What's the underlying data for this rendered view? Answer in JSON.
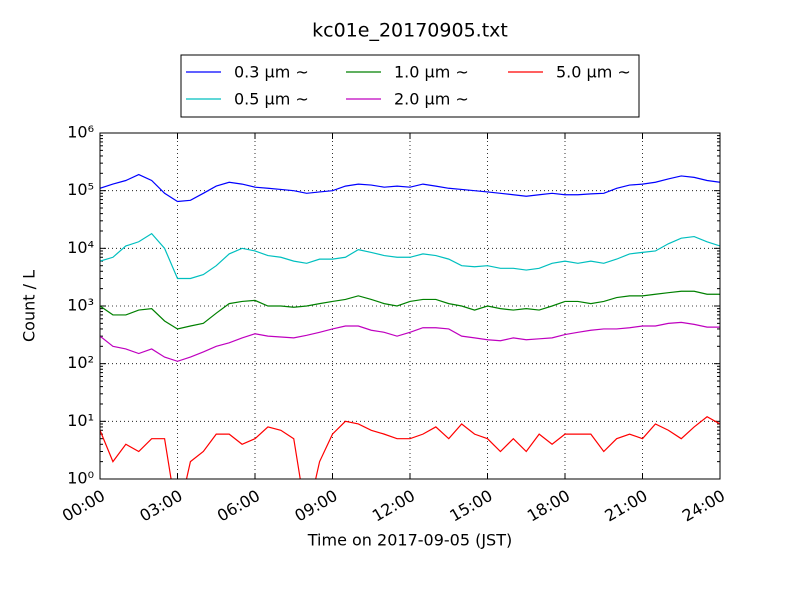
{
  "chart_data": {
    "type": "line",
    "title": "kc01e_20170905.txt",
    "x_label": "Time on 2017-09-05 (JST)",
    "y_label": "Count / L",
    "log_y": true,
    "grid": true,
    "legend": "top-outside",
    "xlim": [
      0,
      24
    ],
    "xticks": [
      {
        "value": 0,
        "label": "00:00"
      },
      {
        "value": 3,
        "label": "03:00"
      },
      {
        "value": 6,
        "label": "06:00"
      },
      {
        "value": 9,
        "label": "09:00"
      },
      {
        "value": 12,
        "label": "12:00"
      },
      {
        "value": 15,
        "label": "15:00"
      },
      {
        "value": 18,
        "label": "18:00"
      },
      {
        "value": 21,
        "label": "21:00"
      },
      {
        "value": 24,
        "label": "24:00"
      }
    ],
    "ylim": [
      1,
      1000000
    ],
    "yticks": [
      {
        "value": 1,
        "label": "10⁰"
      },
      {
        "value": 10,
        "label": "10¹"
      },
      {
        "value": 100,
        "label": "10²"
      },
      {
        "value": 1000,
        "label": "10³"
      },
      {
        "value": 10000,
        "label": "10⁴"
      },
      {
        "value": 100000,
        "label": "10⁵"
      },
      {
        "value": 1000000,
        "label": "10⁶"
      }
    ],
    "x": [
      0,
      0.5,
      1,
      1.5,
      2,
      2.5,
      3,
      3.5,
      4,
      4.5,
      5,
      5.5,
      6,
      6.5,
      7,
      7.5,
      8,
      8.5,
      9,
      9.5,
      10,
      10.5,
      11,
      11.5,
      12,
      12.5,
      13,
      13.5,
      14,
      14.5,
      15,
      15.5,
      16,
      16.5,
      17,
      17.5,
      18,
      18.5,
      19,
      19.5,
      20,
      20.5,
      21,
      21.5,
      22,
      22.5,
      23,
      23.5,
      24
    ],
    "series": [
      {
        "name": "0.3 μm ~",
        "color": "#0000ff",
        "values": [
          110000,
          130000,
          150000,
          190000,
          150000,
          90000,
          65000,
          68000,
          90000,
          120000,
          140000,
          130000,
          115000,
          110000,
          105000,
          100000,
          90000,
          95000,
          100000,
          120000,
          130000,
          125000,
          115000,
          120000,
          115000,
          130000,
          120000,
          110000,
          105000,
          100000,
          95000,
          90000,
          85000,
          80000,
          85000,
          90000,
          85000,
          85000,
          88000,
          90000,
          110000,
          125000,
          130000,
          140000,
          160000,
          180000,
          170000,
          150000,
          140000
        ]
      },
      {
        "name": "0.5 μm ~",
        "color": "#00bfbf",
        "values": [
          6000,
          7000,
          11000,
          13000,
          18000,
          10000,
          3000,
          3000,
          3500,
          5000,
          8000,
          10000,
          9000,
          7500,
          7000,
          6000,
          5500,
          6500,
          6500,
          7000,
          9500,
          8500,
          7500,
          7000,
          7000,
          8000,
          7500,
          6500,
          5000,
          4800,
          5000,
          4500,
          4500,
          4200,
          4500,
          5500,
          6000,
          5500,
          6000,
          5500,
          6500,
          8000,
          8500,
          9000,
          12000,
          15000,
          16000,
          13000,
          11000
        ]
      },
      {
        "name": "1.0 μm ~",
        "color": "#008000",
        "values": [
          1000,
          700,
          700,
          850,
          900,
          550,
          400,
          450,
          500,
          750,
          1100,
          1200,
          1250,
          1000,
          1000,
          950,
          1000,
          1100,
          1200,
          1300,
          1500,
          1300,
          1100,
          1000,
          1200,
          1300,
          1300,
          1100,
          1000,
          850,
          1000,
          900,
          850,
          900,
          850,
          1000,
          1200,
          1200,
          1100,
          1200,
          1400,
          1500,
          1500,
          1600,
          1700,
          1800,
          1800,
          1600,
          1600
        ]
      },
      {
        "name": "2.0 μm ~",
        "color": "#bf00bf",
        "values": [
          300,
          200,
          180,
          150,
          180,
          130,
          110,
          130,
          160,
          200,
          230,
          280,
          330,
          300,
          290,
          280,
          310,
          350,
          400,
          450,
          450,
          380,
          350,
          300,
          350,
          420,
          420,
          400,
          300,
          280,
          260,
          250,
          280,
          260,
          270,
          280,
          320,
          350,
          380,
          400,
          400,
          420,
          450,
          450,
          500,
          520,
          480,
          430,
          430
        ]
      },
      {
        "name": "5.0 μm ~",
        "color": "#ff0000",
        "values": [
          7,
          2,
          4,
          3,
          5,
          5,
          0,
          2,
          3,
          6,
          6,
          4,
          5,
          8,
          7,
          5,
          0,
          2,
          6,
          10,
          9,
          7,
          6,
          5,
          5,
          6,
          8,
          5,
          9,
          6,
          5,
          3,
          5,
          3,
          6,
          4,
          6,
          6,
          6,
          3,
          5,
          6,
          5,
          9,
          7,
          5,
          8,
          12,
          9
        ]
      }
    ]
  }
}
